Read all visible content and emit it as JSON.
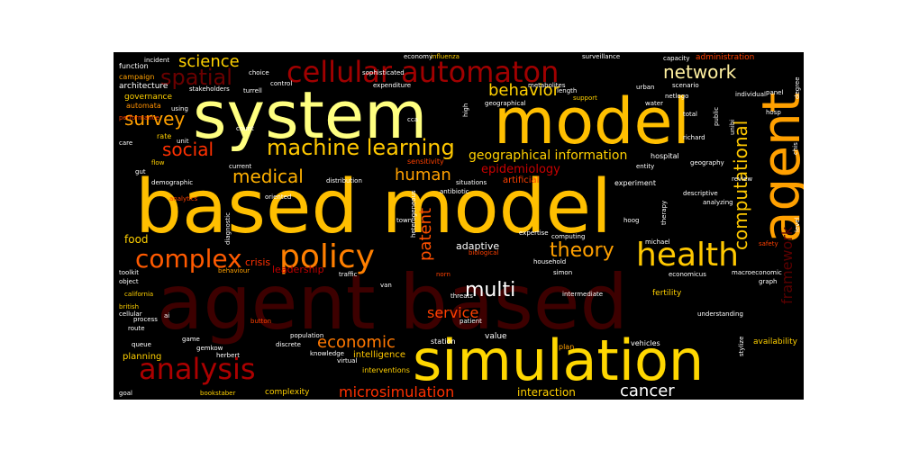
{
  "words": [
    {
      "text": "agent based",
      "color": "#3d0000"
    },
    {
      "text": "based model",
      "color": "#ffbf00"
    },
    {
      "text": "system",
      "color": "#ffff80"
    },
    {
      "text": "model",
      "color": "#ffbf00"
    },
    {
      "text": "agent",
      "color": "#ffa000"
    },
    {
      "text": "simulation",
      "color": "#ffd700"
    },
    {
      "text": "cellular automaton",
      "color": "#a00000"
    },
    {
      "text": "policy",
      "color": "#ff7f00"
    },
    {
      "text": "complex",
      "color": "#ff5a00"
    },
    {
      "text": "health",
      "color": "#ffc800"
    },
    {
      "text": "analysis",
      "color": "#ab0000"
    },
    {
      "text": "machine learning",
      "color": "#ffc800"
    },
    {
      "text": "spatial",
      "color": "#6a0000"
    },
    {
      "text": "science",
      "color": "#ffd000"
    },
    {
      "text": "network",
      "color": "#fff0a0"
    },
    {
      "text": "survey",
      "color": "#ffa000"
    },
    {
      "text": "social",
      "color": "#ff3000"
    },
    {
      "text": "medical",
      "color": "#ffb000"
    },
    {
      "text": "behavior",
      "color": "#ffd000"
    },
    {
      "text": "computational",
      "color": "#ffc800"
    },
    {
      "text": "theory",
      "color": "#ffa000"
    },
    {
      "text": "human",
      "color": "#ffa000"
    },
    {
      "text": "multi",
      "color": "#ffffff"
    },
    {
      "text": "patent",
      "color": "#ff5000"
    },
    {
      "text": "geographical information",
      "color": "#ffd000"
    },
    {
      "text": "epidemiology",
      "color": "#c80000"
    },
    {
      "text": "economic",
      "color": "#ff7800"
    },
    {
      "text": "service",
      "color": "#ff4000"
    },
    {
      "text": "microsimulation",
      "color": "#ff3000"
    },
    {
      "text": "cancer",
      "color": "#ffffff"
    },
    {
      "text": "interaction",
      "color": "#ffd000"
    },
    {
      "text": "framework",
      "color": "#5a0000"
    },
    {
      "text": "food",
      "color": "#ffd000"
    },
    {
      "text": "adaptive",
      "color": "#ffffff"
    },
    {
      "text": "crisis",
      "color": "#ff3000"
    },
    {
      "text": "leadership",
      "color": "#c00000"
    },
    {
      "text": "planning",
      "color": "#ffd000"
    },
    {
      "text": "intelligence",
      "color": "#ffc800"
    },
    {
      "text": "complexity",
      "color": "#ffd000"
    },
    {
      "text": "value",
      "color": "#ffffff"
    },
    {
      "text": "availability",
      "color": "#ffd000"
    },
    {
      "text": "fertility",
      "color": "#ffd000"
    },
    {
      "text": "governance",
      "color": "#ffd000"
    },
    {
      "text": "architecture",
      "color": "#ffffff"
    },
    {
      "text": "automata",
      "color": "#ff9000"
    },
    {
      "text": "campaign",
      "color": "#ffa000"
    },
    {
      "text": "function",
      "color": "#ffffff"
    },
    {
      "text": "rate",
      "color": "#ffd000"
    },
    {
      "text": "unit",
      "color": "#ffffff"
    },
    {
      "text": "care",
      "color": "#ffffff"
    },
    {
      "text": "gut",
      "color": "#ffffff"
    },
    {
      "text": "flow",
      "color": "#ffd000"
    },
    {
      "text": "demographic",
      "color": "#ffffff"
    },
    {
      "text": "behaviour",
      "color": "#ffa000"
    },
    {
      "text": "california",
      "color": "#ffd000"
    },
    {
      "text": "british",
      "color": "#ffd000"
    },
    {
      "text": "cellular",
      "color": "#ffffff"
    },
    {
      "text": "process",
      "color": "#ffffff"
    },
    {
      "text": "route",
      "color": "#ffffff"
    },
    {
      "text": "queue",
      "color": "#ffffff"
    },
    {
      "text": "game",
      "color": "#ffffff"
    },
    {
      "text": "gemkow",
      "color": "#ffffff"
    },
    {
      "text": "herbert",
      "color": "#ffffff"
    },
    {
      "text": "discrete",
      "color": "#ffffff"
    },
    {
      "text": "knowledge",
      "color": "#ffffff"
    },
    {
      "text": "virtual",
      "color": "#ffffff"
    },
    {
      "text": "population",
      "color": "#ffffff"
    },
    {
      "text": "goal",
      "color": "#ffffff"
    },
    {
      "text": "bookstaber",
      "color": "#ffd000"
    },
    {
      "text": "interventions",
      "color": "#ffd000"
    },
    {
      "text": "station",
      "color": "#ffffff"
    },
    {
      "text": "plan",
      "color": "#ffa000"
    },
    {
      "text": "vehicles",
      "color": "#ffffff"
    },
    {
      "text": "understanding",
      "color": "#ffffff"
    },
    {
      "text": "intermediate",
      "color": "#ffffff"
    },
    {
      "text": "simon",
      "color": "#ffffff"
    },
    {
      "text": "household",
      "color": "#ffffff"
    },
    {
      "text": "michael",
      "color": "#ffffff"
    },
    {
      "text": "experiment",
      "color": "#ffffff"
    },
    {
      "text": "hospital",
      "color": "#ffffff"
    },
    {
      "text": "entity",
      "color": "#ffffff"
    },
    {
      "text": "geography",
      "color": "#ffffff"
    },
    {
      "text": "descriptive",
      "color": "#ffffff"
    },
    {
      "text": "analyzing",
      "color": "#ffffff"
    },
    {
      "text": "therapy",
      "color": "#ffffff"
    },
    {
      "text": "hoog",
      "color": "#ffffff"
    },
    {
      "text": "expertise",
      "color": "#ffffff"
    },
    {
      "text": "computing",
      "color": "#ffffff"
    },
    {
      "text": "town",
      "color": "#ffffff"
    },
    {
      "text": "heterogeneous",
      "color": "#ffffff"
    },
    {
      "text": "antibiotic",
      "color": "#ffffff"
    },
    {
      "text": "distribution",
      "color": "#ffffff"
    },
    {
      "text": "situations",
      "color": "#ffffff"
    },
    {
      "text": "artificial",
      "color": "#ff4000"
    },
    {
      "text": "sensitivity",
      "color": "#ff4000"
    },
    {
      "text": "threats",
      "color": "#ffffff"
    },
    {
      "text": "patient",
      "color": "#ffffff"
    },
    {
      "text": "traffic",
      "color": "#ffffff"
    },
    {
      "text": "van",
      "color": "#ffffff"
    },
    {
      "text": "norn",
      "color": "#ff4000"
    },
    {
      "text": "oriented",
      "color": "#ffffff"
    },
    {
      "text": "current",
      "color": "#ffffff"
    },
    {
      "text": "analytics",
      "color": "#ff4000"
    },
    {
      "text": "performance",
      "color": "#ff4000"
    },
    {
      "text": "urban",
      "color": "#ffffff"
    },
    {
      "text": "netlogo",
      "color": "#ffffff"
    },
    {
      "text": "scenario",
      "color": "#ffffff"
    },
    {
      "text": "administration",
      "color": "#ff4000"
    },
    {
      "text": "capacity",
      "color": "#ffffff"
    },
    {
      "text": "surveillance",
      "color": "#ffffff"
    },
    {
      "text": "influenza",
      "color": "#ffd000"
    },
    {
      "text": "economy",
      "color": "#ffffff"
    },
    {
      "text": "incident",
      "color": "#ffffff"
    },
    {
      "text": "choice",
      "color": "#ffffff"
    },
    {
      "text": "stakeholders",
      "color": "#ffffff"
    },
    {
      "text": "turrell",
      "color": "#ffffff"
    },
    {
      "text": "control",
      "color": "#ffffff"
    },
    {
      "text": "sophisticated",
      "color": "#ffffff"
    },
    {
      "text": "expenditure",
      "color": "#ffffff"
    },
    {
      "text": "metabolites",
      "color": "#ffffff"
    },
    {
      "text": "length",
      "color": "#ffffff"
    },
    {
      "text": "support",
      "color": "#ffd000"
    },
    {
      "text": "water",
      "color": "#ffffff"
    },
    {
      "text": "total",
      "color": "#ffffff"
    },
    {
      "text": "public",
      "color": "#ffffff"
    },
    {
      "text": "richard",
      "color": "#ffffff"
    },
    {
      "text": "unibi",
      "color": "#ffffff"
    },
    {
      "text": "degree",
      "color": "#ffffff"
    },
    {
      "text": "panel",
      "color": "#ffffff"
    },
    {
      "text": "hosp",
      "color": "#ffffff"
    },
    {
      "text": "chis",
      "color": "#ffffff"
    },
    {
      "text": "level",
      "color": "#ffffff"
    },
    {
      "text": "safety",
      "color": "#ff4000"
    },
    {
      "text": "economicus",
      "color": "#ffffff"
    },
    {
      "text": "macroeconomic",
      "color": "#ffffff"
    },
    {
      "text": "graph",
      "color": "#ffffff"
    },
    {
      "text": "stylize",
      "color": "#ffffff"
    },
    {
      "text": "review",
      "color": "#ffffff"
    },
    {
      "text": "individual",
      "color": "#ffffff"
    },
    {
      "text": "using",
      "color": "#ffffff"
    },
    {
      "text": "count",
      "color": "#ffffff"
    },
    {
      "text": "high",
      "color": "#ffffff"
    },
    {
      "text": "geographical",
      "color": "#ffffff"
    },
    {
      "text": "cca",
      "color": "#ffffff"
    },
    {
      "text": "biological",
      "color": "#ff4000"
    },
    {
      "text": "object",
      "color": "#ffffff"
    },
    {
      "text": "toolkit",
      "color": "#ffffff"
    },
    {
      "text": "ai",
      "color": "#ffffff"
    },
    {
      "text": "button",
      "color": "#ff4000"
    },
    {
      "text": "diagnostic",
      "color": "#ffffff"
    }
  ]
}
